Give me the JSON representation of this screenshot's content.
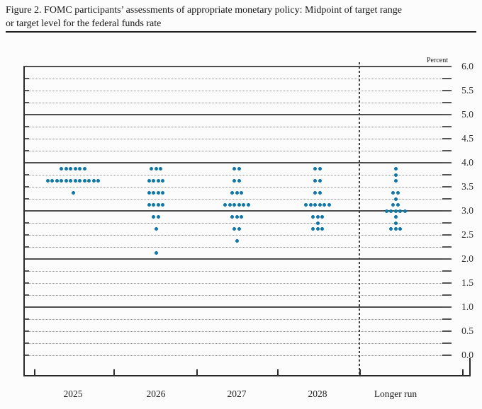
{
  "header": {
    "title_line1": "Figure 2. FOMC participants’ assessments of appropriate monetary policy: Midpoint of target range",
    "title_line2": "or target level for the federal funds rate"
  },
  "chart_data": {
    "type": "scatter",
    "subtype": "fomc-dot-plot",
    "title": "FOMC participants’ assessments of appropriate monetary policy: Midpoint of target range or target level for the federal funds rate",
    "ylabel": "Percent",
    "xlabel": "",
    "ylim": [
      0.0,
      6.0
    ],
    "grid_interval": 0.25,
    "label_interval": 0.5,
    "grid_style": "solid lines at integer percents (except 0.0), dotted lines at quarter percents",
    "legend_position": "none",
    "ytick_labels": [
      "6.0",
      "5.5",
      "5.0",
      "4.5",
      "4.0",
      "3.5",
      "3.0",
      "2.5",
      "2.0",
      "1.5",
      "1.0",
      "0.5",
      "0.0"
    ],
    "categories": [
      "2025",
      "2026",
      "2027",
      "2028",
      "Longer run"
    ],
    "dashed_separator_before": "Longer run",
    "dot_color": "#0f76a8",
    "series": [
      {
        "category": "2025",
        "dots": [
          {
            "rate": 3.875,
            "count": 6
          },
          {
            "rate": 3.625,
            "count": 12
          },
          {
            "rate": 3.375,
            "count": 1
          }
        ]
      },
      {
        "category": "2026",
        "dots": [
          {
            "rate": 3.875,
            "count": 3
          },
          {
            "rate": 3.625,
            "count": 4
          },
          {
            "rate": 3.375,
            "count": 4
          },
          {
            "rate": 3.125,
            "count": 4
          },
          {
            "rate": 2.875,
            "count": 2
          },
          {
            "rate": 2.625,
            "count": 1
          },
          {
            "rate": 2.125,
            "count": 1
          }
        ]
      },
      {
        "category": "2027",
        "dots": [
          {
            "rate": 3.875,
            "count": 2
          },
          {
            "rate": 3.625,
            "count": 2
          },
          {
            "rate": 3.375,
            "count": 3
          },
          {
            "rate": 3.125,
            "count": 6
          },
          {
            "rate": 2.875,
            "count": 3
          },
          {
            "rate": 2.625,
            "count": 2
          },
          {
            "rate": 2.375,
            "count": 1
          }
        ]
      },
      {
        "category": "2028",
        "dots": [
          {
            "rate": 3.875,
            "count": 2
          },
          {
            "rate": 3.625,
            "count": 2
          },
          {
            "rate": 3.375,
            "count": 2
          },
          {
            "rate": 3.125,
            "count": 6
          },
          {
            "rate": 2.875,
            "count": 3
          },
          {
            "rate": 2.75,
            "count": 1
          },
          {
            "rate": 2.625,
            "count": 3
          }
        ]
      },
      {
        "category": "Longer run",
        "dots": [
          {
            "rate": 3.875,
            "count": 1
          },
          {
            "rate": 3.75,
            "count": 1
          },
          {
            "rate": 3.625,
            "count": 1
          },
          {
            "rate": 3.375,
            "count": 2
          },
          {
            "rate": 3.25,
            "count": 1
          },
          {
            "rate": 3.125,
            "count": 2
          },
          {
            "rate": 3.0,
            "count": 5
          },
          {
            "rate": 2.875,
            "count": 1
          },
          {
            "rate": 2.75,
            "count": 1
          },
          {
            "rate": 2.625,
            "count": 3
          }
        ]
      }
    ]
  }
}
